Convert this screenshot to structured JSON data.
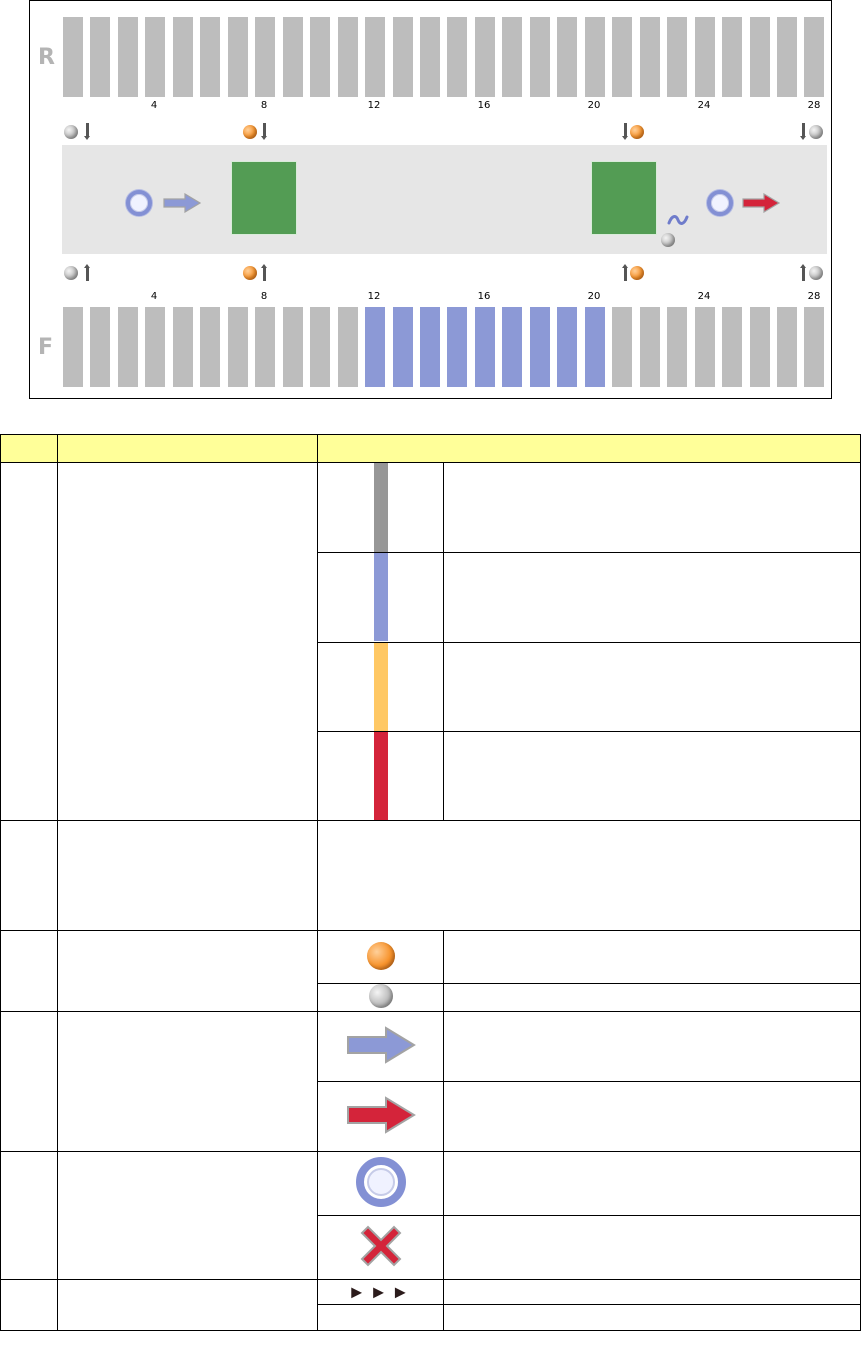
{
  "diagram": {
    "row_labels": {
      "top": "R",
      "bottom": "F"
    },
    "car_numbers": [
      "4",
      "8",
      "12",
      "16",
      "20",
      "24",
      "28"
    ],
    "bottom_blue_cars_from": 12,
    "bottom_blue_cars_to": 20,
    "colors": {
      "car_gray": "#bdbdbd",
      "car_blue": "#8c99d6",
      "platform": "#e6e6e6",
      "green": "#539c54"
    }
  },
  "table": {
    "headers": [
      "",
      "",
      ""
    ],
    "color_swatches": [
      "#979797",
      "#8c99d6",
      "#ffc864",
      "#d4243a"
    ],
    "dots": [
      "orange-dot-icon",
      "gray-dot-icon"
    ],
    "arrows": [
      "blue-arrow-icon",
      "red-arrow-icon"
    ],
    "status_icons": [
      "blue-ring-icon",
      "red-cross-icon"
    ],
    "triangles": "►►►"
  }
}
